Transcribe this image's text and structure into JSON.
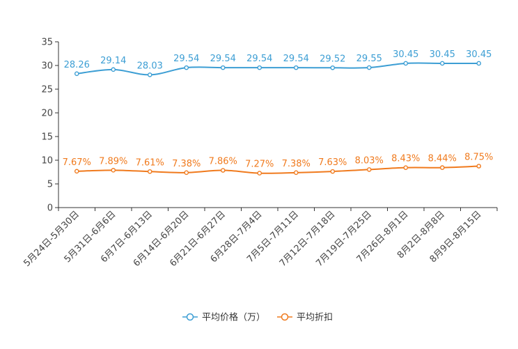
{
  "chart_data": {
    "type": "line",
    "categories": [
      "5月24日-5月30日",
      "5月31日-6月6日",
      "6月7日-6月13日",
      "6月14日-6月20日",
      "6月21日-6月27日",
      "6月28日-7月4日",
      "7月5日-7月11日",
      "7月12日-7月18日",
      "7月19日-7月25日",
      "7月26日-8月1日",
      "8月2日-8月8日",
      "8月9日-8月15日"
    ],
    "series": [
      {
        "name": "平均价格（万）",
        "color": "#3c9ed4",
        "values": [
          28.26,
          29.14,
          28.03,
          29.54,
          29.54,
          29.54,
          29.54,
          29.52,
          29.55,
          30.45,
          30.45,
          30.45
        ],
        "labels": [
          "28.26",
          "29.14",
          "28.03",
          "29.54",
          "29.54",
          "29.54",
          "29.54",
          "29.52",
          "29.55",
          "30.45",
          "30.45",
          "30.45"
        ]
      },
      {
        "name": "平均折扣",
        "color": "#f07a1d",
        "values": [
          7.67,
          7.89,
          7.61,
          7.38,
          7.86,
          7.27,
          7.38,
          7.63,
          8.03,
          8.43,
          8.44,
          8.75
        ],
        "labels": [
          "7.67%",
          "7.89%",
          "7.61%",
          "7.38%",
          "7.86%",
          "7.27%",
          "7.38%",
          "7.63%",
          "8.03%",
          "8.43%",
          "8.44%",
          "8.75%"
        ]
      }
    ],
    "yticks": [
      "0",
      "5",
      "10",
      "15",
      "20",
      "25",
      "30",
      "35"
    ],
    "ylim": [
      0,
      35
    ],
    "grid": false,
    "legend_position": "bottom-center",
    "title": "",
    "xlabel": "",
    "ylabel": ""
  }
}
